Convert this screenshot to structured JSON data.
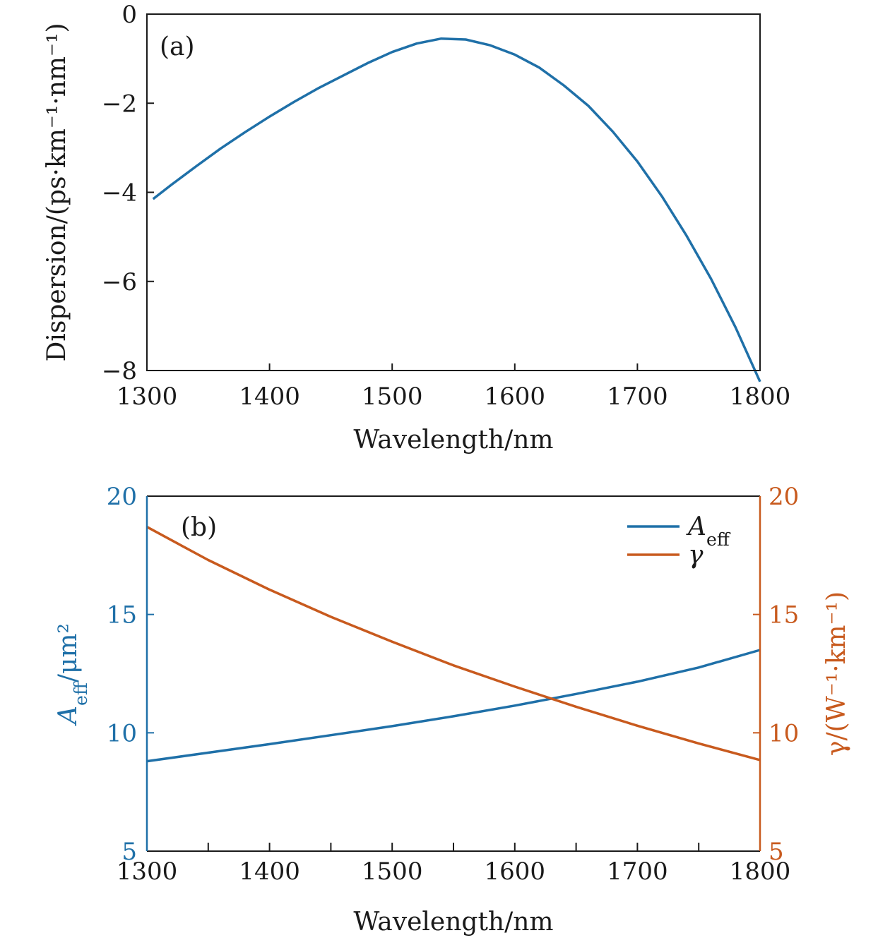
{
  "colors": {
    "blue": "#1f70a8",
    "orange": "#c85a1e",
    "axis": "#1a1a1a"
  },
  "chart_data": [
    {
      "type": "line",
      "panel_label": "(a)",
      "xlabel": "Wavelength/nm",
      "ylabel": "Dispersion/(ps·km⁻¹·nm⁻¹)",
      "xlim": [
        1300,
        1800
      ],
      "ylim": [
        -8,
        0
      ],
      "xticks": [
        1300,
        1400,
        1500,
        1600,
        1700,
        1800
      ],
      "yticks": [
        0,
        -2,
        -4,
        -6,
        -8
      ],
      "ytick_labels": [
        "0",
        "−2",
        "−4",
        "−6",
        "−8"
      ],
      "grid": false,
      "series": [
        {
          "color": "#1f70a8",
          "x": [
            1305,
            1320,
            1340,
            1360,
            1380,
            1400,
            1420,
            1440,
            1460,
            1480,
            1500,
            1520,
            1540,
            1560,
            1580,
            1600,
            1620,
            1640,
            1660,
            1680,
            1700,
            1720,
            1740,
            1760,
            1780,
            1800
          ],
          "y": [
            -4.15,
            -3.83,
            -3.42,
            -3.02,
            -2.65,
            -2.3,
            -1.97,
            -1.66,
            -1.38,
            -1.1,
            -0.85,
            -0.66,
            -0.55,
            -0.57,
            -0.7,
            -0.91,
            -1.2,
            -1.6,
            -2.06,
            -2.64,
            -3.31,
            -4.09,
            -4.97,
            -5.94,
            -7.03,
            -8.25
          ]
        }
      ]
    },
    {
      "type": "line",
      "panel_label": "(b)",
      "xlabel": "Wavelength/nm",
      "ylabel_left": "A_eff/μm²",
      "ylabel_right": "γ/(W⁻¹·km⁻¹)",
      "xlim": [
        1300,
        1800
      ],
      "ylim_left": [
        5,
        20
      ],
      "ylim_right": [
        5,
        20
      ],
      "xticks": [
        1300,
        1400,
        1500,
        1600,
        1700,
        1800
      ],
      "yticks_left": [
        20,
        15,
        10,
        5
      ],
      "yticks_right": [
        20,
        15,
        10,
        5
      ],
      "grid": false,
      "legend_position": "top-right",
      "series": [
        {
          "name": "A_eff",
          "axis": "left",
          "color": "#1f70a8",
          "x": [
            1300,
            1350,
            1400,
            1450,
            1500,
            1550,
            1600,
            1650,
            1700,
            1750,
            1800
          ],
          "y": [
            8.8,
            9.16,
            9.52,
            9.9,
            10.28,
            10.7,
            11.15,
            11.64,
            12.16,
            12.76,
            13.5
          ]
        },
        {
          "name": "γ",
          "axis": "right",
          "color": "#c85a1e",
          "x": [
            1300,
            1350,
            1400,
            1450,
            1500,
            1550,
            1600,
            1650,
            1700,
            1750,
            1800
          ],
          "y": [
            18.7,
            17.3,
            16.05,
            14.9,
            13.85,
            12.85,
            11.95,
            11.1,
            10.3,
            9.55,
            8.85
          ]
        }
      ]
    }
  ]
}
